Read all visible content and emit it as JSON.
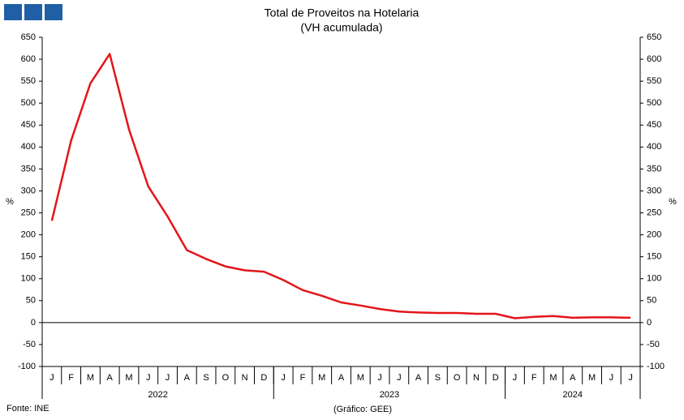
{
  "chart_data": {
    "type": "line",
    "title": "Total de Proveitos na Hotelaria",
    "subtitle": "(VH acumulada)",
    "y_label": "%",
    "y2_label": "%",
    "source": "Fonte: INE",
    "credit": "(Gráfico: GEE)",
    "categories": [
      "J",
      "F",
      "M",
      "A",
      "M",
      "J",
      "J",
      "A",
      "S",
      "O",
      "N",
      "D",
      "J",
      "F",
      "M",
      "A",
      "M",
      "J",
      "J",
      "A",
      "S",
      "O",
      "N",
      "D",
      "J",
      "F",
      "M",
      "A",
      "M",
      "J",
      "J"
    ],
    "year_groups": [
      {
        "label": "2022",
        "months": 12
      },
      {
        "label": "2023",
        "months": 12
      },
      {
        "label": "2024",
        "months": 7
      }
    ],
    "series": [
      {
        "name": "Total de Proveitos",
        "color": "#e3151a",
        "values": [
          232,
          415,
          545,
          612,
          440,
          310,
          242,
          165,
          145,
          128,
          119,
          116,
          97,
          74,
          61,
          46,
          39,
          31,
          25,
          23,
          22,
          22,
          20,
          20,
          10,
          13,
          15,
          11,
          12,
          12,
          11
        ]
      }
    ],
    "ylim": [
      -100,
      650
    ],
    "yticks": [
      -100,
      -50,
      0,
      50,
      100,
      150,
      200,
      250,
      300,
      350,
      400,
      450,
      500,
      550,
      600,
      650
    ],
    "y2lim": [
      -100,
      650
    ],
    "y2ticks": [
      -100,
      -50,
      0,
      50,
      100,
      150,
      200,
      250,
      300,
      350,
      400,
      450,
      500,
      550,
      600,
      650
    ],
    "grid": false
  }
}
